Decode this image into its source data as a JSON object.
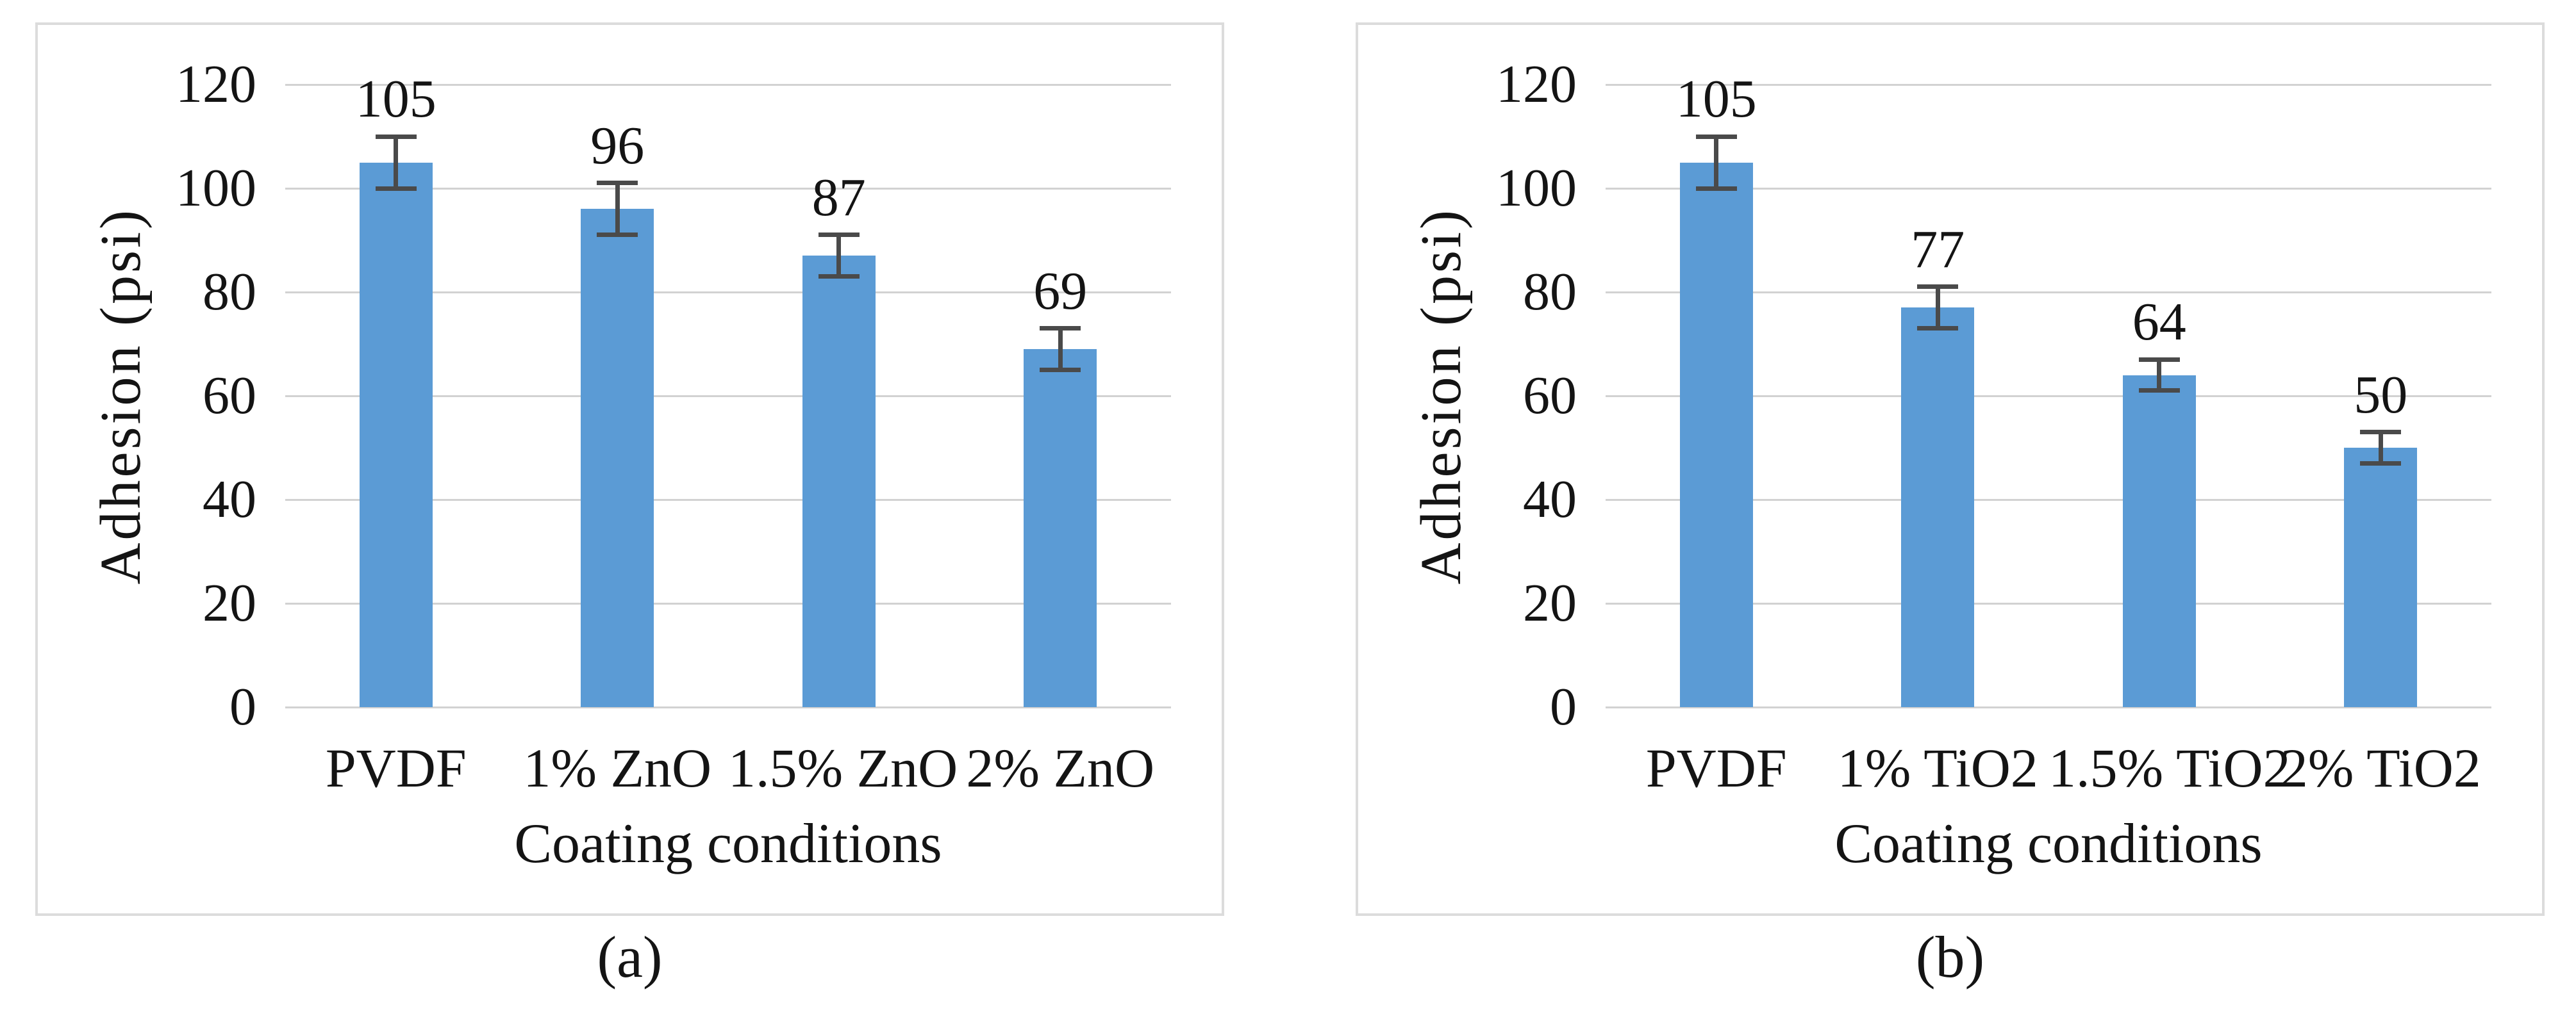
{
  "colors": {
    "bar": "#5B9BD5",
    "gridline": "#D2D2D2",
    "error_bar": "#4A4A4A",
    "panel_border": "#DCDCDC",
    "text": "#141414",
    "background": "#FFFFFF"
  },
  "chart_data": [
    {
      "type": "bar",
      "panel_label": "(a)",
      "categories": [
        "PVDF",
        "1% ZnO",
        "1.5% ZnO",
        "2% ZnO"
      ],
      "values": [
        105,
        96,
        87,
        69
      ],
      "data_labels": [
        "105",
        "96",
        "87",
        "69"
      ],
      "error_bars": [
        5,
        5,
        4,
        4
      ],
      "xlabel": "Coating conditions",
      "ylabel": "Adhesion (psi)",
      "ylim": [
        0,
        120
      ],
      "yticks": [
        0,
        20,
        40,
        60,
        80,
        100,
        120
      ],
      "grid": true,
      "legend": false
    },
    {
      "type": "bar",
      "panel_label": "(b)",
      "categories": [
        "PVDF",
        "1% TiO2",
        "1.5% TiO2",
        "2% TiO2"
      ],
      "values": [
        105,
        77,
        64,
        50
      ],
      "data_labels": [
        "105",
        "77",
        "64",
        "50"
      ],
      "error_bars": [
        5,
        4,
        3,
        3
      ],
      "xlabel": "Coating conditions",
      "ylabel": "Adhesion (psi)",
      "ylim": [
        0,
        120
      ],
      "yticks": [
        0,
        20,
        40,
        60,
        80,
        100,
        120
      ],
      "grid": true,
      "legend": false
    }
  ]
}
